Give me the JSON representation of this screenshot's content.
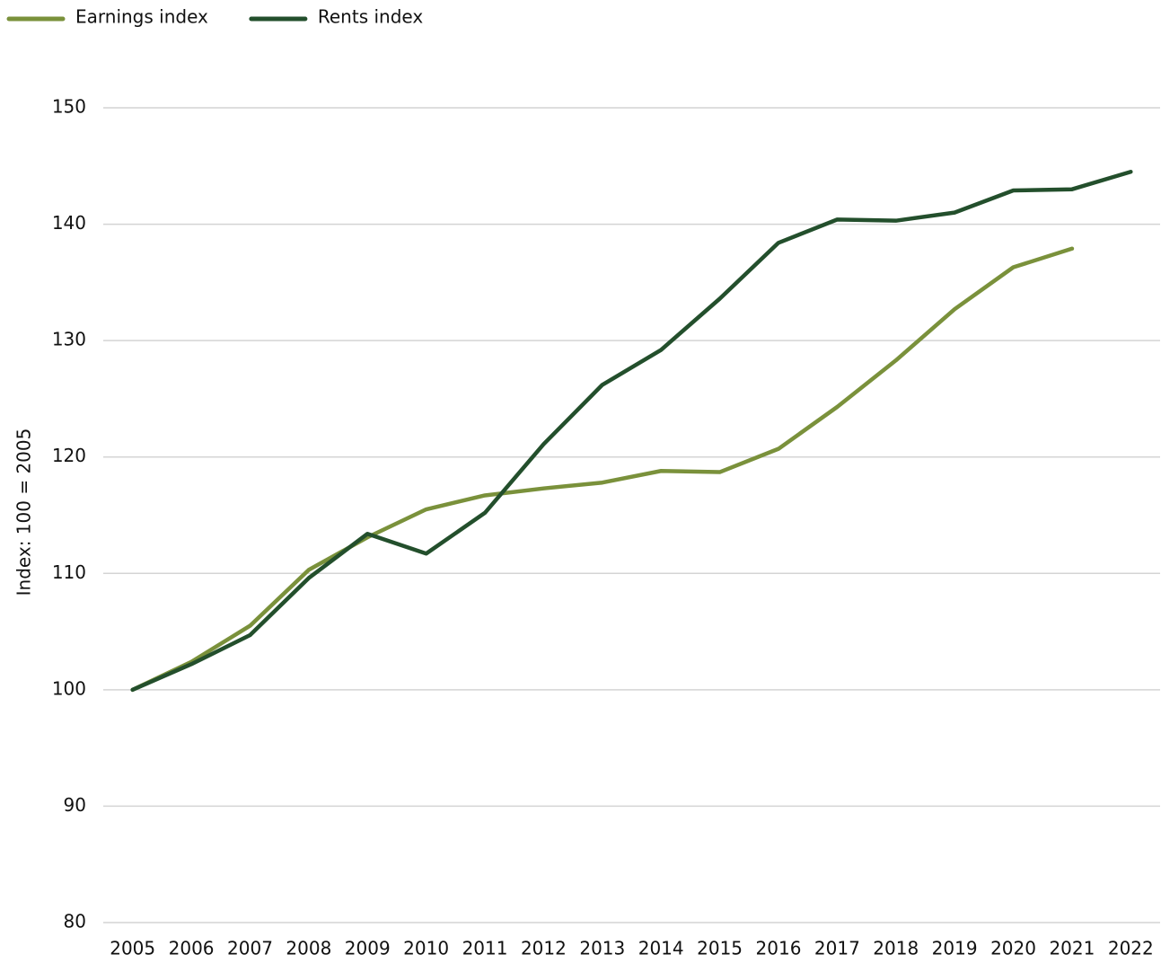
{
  "chart_data": {
    "type": "line",
    "y_label": "Index: 100 = 2005",
    "categories": [
      "2005",
      "2006",
      "2007",
      "2008",
      "2009",
      "2010",
      "2011",
      "2012",
      "2013",
      "2014",
      "2015",
      "2016",
      "2017",
      "2018",
      "2019",
      "2020",
      "2021",
      "2022"
    ],
    "series": [
      {
        "name": "Earnings index",
        "color": "#7a913b",
        "values": [
          100,
          102.4,
          105.5,
          110.3,
          113.1,
          115.5,
          116.7,
          117.3,
          117.8,
          118.8,
          118.7,
          120.7,
          124.3,
          128.3,
          132.7,
          136.3,
          137.9,
          null
        ]
      },
      {
        "name": "Rents index",
        "color": "#234f2c",
        "values": [
          100,
          102.2,
          104.7,
          109.6,
          113.4,
          111.7,
          115.2,
          121.1,
          126.2,
          129.2,
          133.6,
          138.4,
          140.4,
          140.3,
          141.0,
          142.9,
          143.0,
          144.5
        ]
      }
    ],
    "ylim": [
      80,
      150
    ],
    "yticks": [
      80,
      90,
      100,
      110,
      120,
      130,
      140,
      150
    ],
    "grid": true,
    "legend": "top-left"
  }
}
